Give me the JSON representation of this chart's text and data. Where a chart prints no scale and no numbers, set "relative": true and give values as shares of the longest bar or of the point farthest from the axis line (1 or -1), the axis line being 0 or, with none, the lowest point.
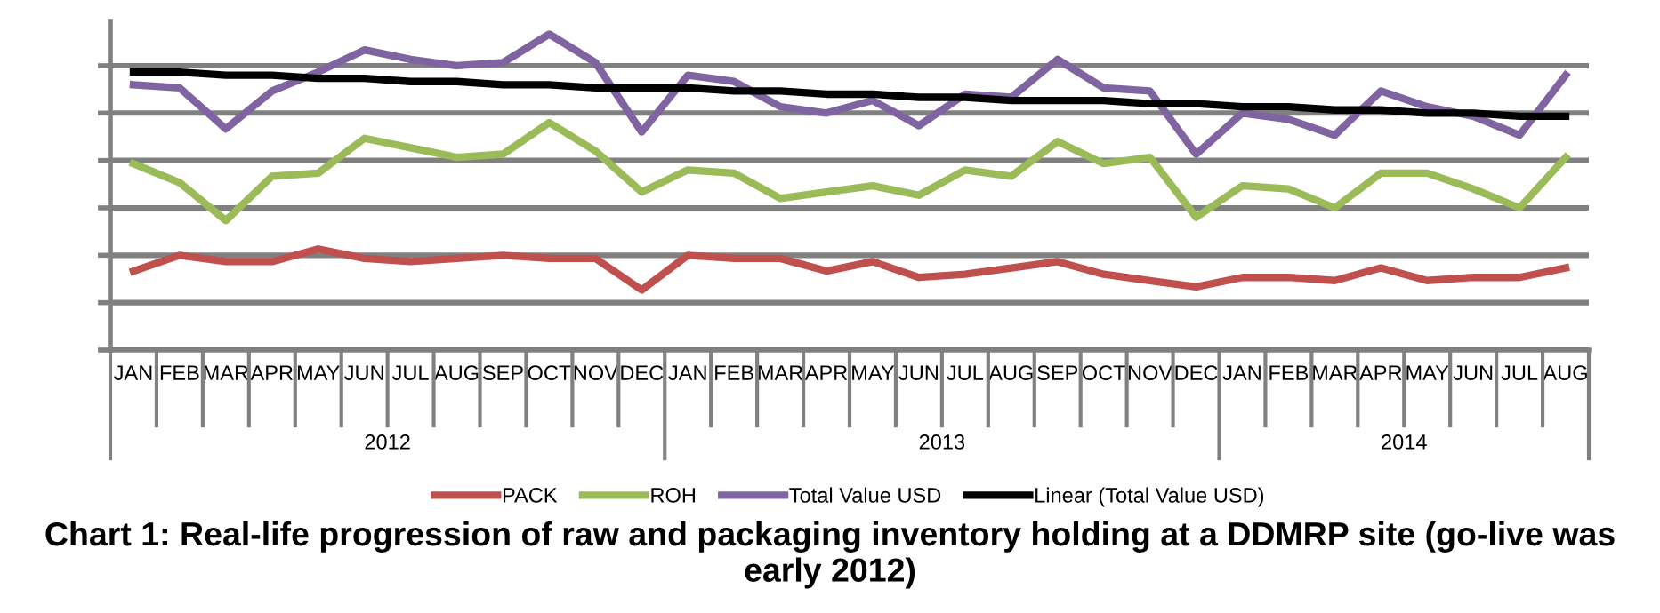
{
  "chart_data": {
    "type": "line",
    "title": "Chart 1: Real-life progression of raw and packaging inventory holding at a DDMRP site (go-live was early 2012)",
    "categories": [
      "JAN",
      "FEB",
      "MAR",
      "APR",
      "MAY",
      "JUN",
      "JUL",
      "AUG",
      "SEP",
      "OCT",
      "NOV",
      "DEC",
      "JAN",
      "FEB",
      "MAR",
      "APR",
      "MAY",
      "JUN",
      "JUL",
      "AUG",
      "SEP",
      "OCT",
      "NOV",
      "DEC",
      "JAN",
      "FEB",
      "MAR",
      "APR",
      "MAY",
      "JUN",
      "JUL",
      "AUG"
    ],
    "relative": true,
    "grid": "y",
    "legend": "bottom",
    "marker": "none",
    "line_style": "solid",
    "annotations": [
      "2012",
      "2013",
      "2014"
    ],
    "series": [
      {
        "name": "PACK",
        "color": "#c0504d",
        "values": [
          0.25,
          0.3,
          0.28,
          0.28,
          0.32,
          0.29,
          0.28,
          0.29,
          0.3,
          0.29,
          0.29,
          0.19,
          0.3,
          0.29,
          0.29,
          0.25,
          0.28,
          0.23,
          0.24,
          0.26,
          0.28,
          0.24,
          0.22,
          0.2,
          0.23,
          0.23,
          0.22,
          0.26,
          0.22,
          0.23,
          0.23,
          0.26
        ]
      },
      {
        "name": "ROH",
        "color": "#9bbb59",
        "values": [
          0.59,
          0.53,
          0.41,
          0.55,
          0.56,
          0.67,
          0.64,
          0.61,
          0.62,
          0.72,
          0.63,
          0.5,
          0.57,
          0.56,
          0.48,
          0.5,
          0.52,
          0.49,
          0.57,
          0.55,
          0.66,
          0.59,
          0.61,
          0.42,
          0.52,
          0.51,
          0.45,
          0.56,
          0.56,
          0.51,
          0.45,
          0.61
        ]
      },
      {
        "name": "Total Value USD",
        "color": "#8064a2",
        "values": [
          0.84,
          0.83,
          0.7,
          0.82,
          0.88,
          0.95,
          0.92,
          0.9,
          0.91,
          1.0,
          0.91,
          0.69,
          0.87,
          0.85,
          0.77,
          0.75,
          0.79,
          0.71,
          0.81,
          0.8,
          0.92,
          0.83,
          0.82,
          0.62,
          0.75,
          0.73,
          0.68,
          0.82,
          0.77,
          0.74,
          0.68,
          0.87
        ]
      },
      {
        "name": "Linear (Total Value USD)",
        "color": "#000000",
        "values": [
          0.88,
          0.88,
          0.87,
          0.87,
          0.86,
          0.86,
          0.85,
          0.85,
          0.84,
          0.84,
          0.83,
          0.83,
          0.83,
          0.82,
          0.82,
          0.81,
          0.81,
          0.8,
          0.8,
          0.79,
          0.79,
          0.79,
          0.78,
          0.78,
          0.77,
          0.77,
          0.76,
          0.76,
          0.75,
          0.75,
          0.74,
          0.74
        ]
      }
    ]
  }
}
